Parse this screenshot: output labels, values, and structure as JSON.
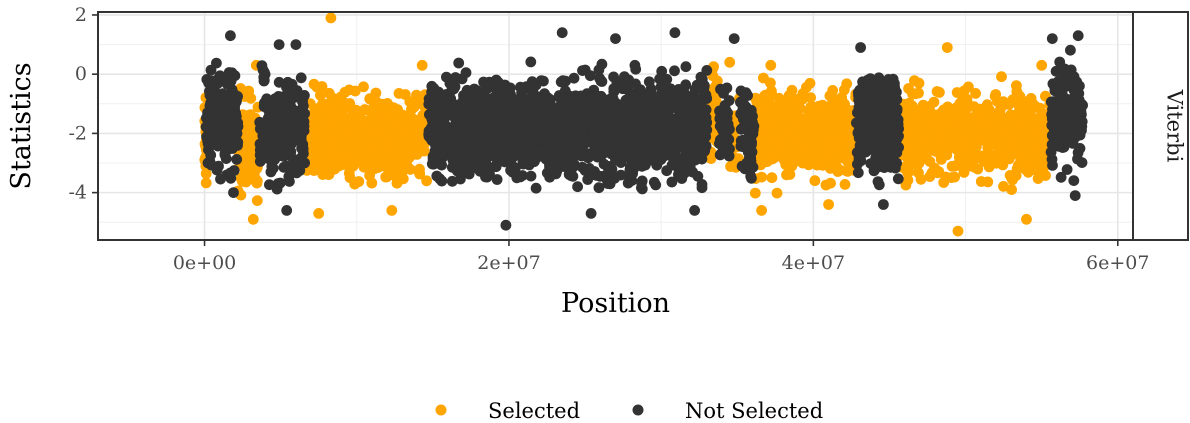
{
  "chart_data": {
    "type": "scatter",
    "xlabel": "Position",
    "ylabel": "Statistics",
    "facet_label": "Viterbi",
    "xlim": [
      -7000000,
      61000000
    ],
    "ylim": [
      -5.6,
      2.1
    ],
    "x_ticks": [
      {
        "value": 0,
        "label": "0e+00"
      },
      {
        "value": 20000000,
        "label": "2e+07"
      },
      {
        "value": 40000000,
        "label": "4e+07"
      },
      {
        "value": 60000000,
        "label": "6e+07"
      }
    ],
    "y_ticks": [
      {
        "value": 2,
        "label": "2"
      },
      {
        "value": 0,
        "label": "0"
      },
      {
        "value": -2,
        "label": "-2"
      },
      {
        "value": -4,
        "label": "-4"
      }
    ],
    "grid": true,
    "legend_position": "bottom",
    "series": [
      {
        "name": "Selected",
        "color": "#FFA500",
        "segments": [
          {
            "x_range": [
              0,
              200000
            ],
            "y_mean": -2.4,
            "y_spread": 1.3,
            "n": 25,
            "outliers": []
          },
          {
            "x_range": [
              2200000,
              3600000
            ],
            "y_mean": -2.5,
            "y_spread": 1.3,
            "n": 110,
            "outliers": [
              [
                3200000,
                -4.9
              ],
              [
                3400000,
                0.3
              ]
            ]
          },
          {
            "x_range": [
              6600000,
              14700000
            ],
            "y_mean": -2.1,
            "y_spread": 1.3,
            "n": 550,
            "outliers": [
              [
                8300000,
                1.9
              ],
              [
                7500000,
                -4.7
              ],
              [
                12300000,
                -4.6
              ],
              [
                14300000,
                0.3
              ]
            ]
          },
          {
            "x_range": [
              33000000,
              33800000
            ],
            "y_mean": -1.6,
            "y_spread": 1.4,
            "n": 45,
            "outliers": [
              [
                33400000,
                0.2
              ]
            ]
          },
          {
            "x_range": [
              34500000,
              35200000
            ],
            "y_mean": -2.3,
            "y_spread": 1.0,
            "n": 25,
            "outliers": [
              [
                34500000,
                0.4
              ]
            ]
          },
          {
            "x_range": [
              36100000,
              42800000
            ],
            "y_mean": -2.0,
            "y_spread": 1.3,
            "n": 480,
            "outliers": [
              [
                36600000,
                -4.6
              ],
              [
                37200000,
                0.3
              ],
              [
                41000000,
                -4.4
              ]
            ]
          },
          {
            "x_range": [
              45600000,
              55600000
            ],
            "y_mean": -2.1,
            "y_spread": 1.3,
            "n": 600,
            "outliers": [
              [
                48800000,
                0.9
              ],
              [
                49500000,
                -5.3
              ],
              [
                54000000,
                -4.9
              ],
              [
                55000000,
                0.3
              ]
            ]
          }
        ]
      },
      {
        "name": "Not Selected",
        "color": "#333333",
        "segments": [
          {
            "x_range": [
              100000,
              2200000
            ],
            "y_mean": -1.6,
            "y_spread": 1.5,
            "n": 150,
            "outliers": [
              [
                1700000,
                1.3
              ],
              [
                1900000,
                -4.0
              ]
            ]
          },
          {
            "x_range": [
              3600000,
              6600000
            ],
            "y_mean": -1.8,
            "y_spread": 1.6,
            "n": 230,
            "outliers": [
              [
                4900000,
                1.0
              ],
              [
                5400000,
                -4.6
              ],
              [
                6000000,
                1.0
              ]
            ]
          },
          {
            "x_range": [
              14700000,
              33000000
            ],
            "y_mean": -1.8,
            "y_spread": 1.5,
            "n": 1500,
            "outliers": [
              [
                19800000,
                -5.1
              ],
              [
                23500000,
                1.4
              ],
              [
                25400000,
                -4.7
              ],
              [
                27000000,
                1.2
              ],
              [
                30900000,
                1.4
              ],
              [
                32200000,
                -4.6
              ]
            ]
          },
          {
            "x_range": [
              33800000,
              34500000
            ],
            "y_mean": -1.6,
            "y_spread": 1.3,
            "n": 35,
            "outliers": [
              [
                34800000,
                1.2
              ]
            ]
          },
          {
            "x_range": [
              35200000,
              36100000
            ],
            "y_mean": -2.0,
            "y_spread": 1.3,
            "n": 60,
            "outliers": []
          },
          {
            "x_range": [
              42800000,
              45600000
            ],
            "y_mean": -1.8,
            "y_spread": 1.4,
            "n": 230,
            "outliers": [
              [
                43100000,
                0.9
              ],
              [
                44600000,
                -4.4
              ]
            ]
          },
          {
            "x_range": [
              55600000,
              57700000
            ],
            "y_mean": -1.3,
            "y_spread": 1.5,
            "n": 160,
            "outliers": [
              [
                55700000,
                1.2
              ],
              [
                57400000,
                1.3
              ],
              [
                57200000,
                -4.1
              ]
            ]
          }
        ]
      }
    ]
  }
}
